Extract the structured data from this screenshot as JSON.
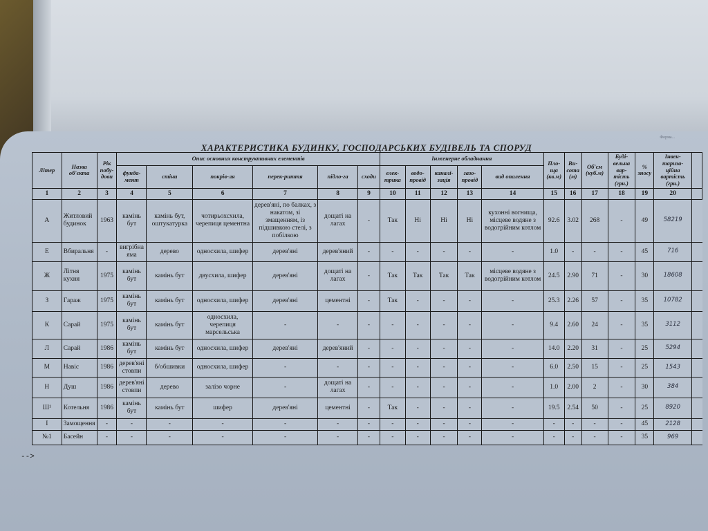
{
  "title": "ХАРАКТЕРИСТИКА БУДИНКУ, ГОСПОДАРСЬКИХ БУДІВЕЛЬ ТА СПОРУД",
  "corner_note": "Форма...",
  "groups": {
    "construction": "Опис основних конструктивних елементів",
    "engineering": "Інженерне обладнання"
  },
  "headers": [
    "Літер",
    "Назва об'єкта",
    "Рік побу-дови",
    "фунда-мент",
    "стіни",
    "покрів-ля",
    "перек-риття",
    "підло-га",
    "сходи",
    "елек-трика",
    "водо-провід",
    "каналі-зація",
    "газо-провід",
    "вид опалення",
    "Пло-ща (кв.м)",
    "Ви-сота (м)",
    "Об'єм (куб.м)",
    "Буді-вельна вар-тість (грн.)",
    "% зносу",
    "Інвен-тариза-ційна вартість (грн.)"
  ],
  "column_numbers": [
    "1",
    "2",
    "3",
    "4",
    "5",
    "6",
    "7",
    "8",
    "9",
    "10",
    "11",
    "12",
    "13",
    "14",
    "15",
    "16",
    "17",
    "18",
    "19",
    "20"
  ],
  "rows": [
    [
      "А",
      "Житловий будинок",
      "1963",
      "камінь бут",
      "камінь бут, оштукатурка",
      "чотирьохсхила, черепиця цементна",
      "дерев'яні, по балках, з накатом, зі змащенням, із підшивкою стелі, з побілкою",
      "дощаті на лагах",
      "-",
      "Так",
      "Ні",
      "Ні",
      "Ні",
      "кухонні вогнища, місцеве водяне з водогрійним котлом",
      "92.6",
      "3.02",
      "268",
      "-",
      "49",
      "58219"
    ],
    [
      "Е",
      "Вбиральня",
      "-",
      "вигрібна яма",
      "дерево",
      "односхила, шифер",
      "дерев'яні",
      "дерев'яний",
      "-",
      "-",
      "-",
      "-",
      "-",
      "-",
      "1.0",
      "-",
      "-",
      "-",
      "45",
      "716"
    ],
    [
      "Ж",
      "Літня кухня",
      "1975",
      "камінь бут",
      "камінь бут",
      "двусхила, шифер",
      "дерев'яні",
      "дощаті на лагах",
      "-",
      "Так",
      "Так",
      "Так",
      "Так",
      "місцеве водяне з водогрійним котлом",
      "24.5",
      "2.90",
      "71",
      "-",
      "30",
      "18608"
    ],
    [
      "З",
      "Гараж",
      "1975",
      "камінь бут",
      "камінь бут",
      "односхила, шифер",
      "дерев'яні",
      "цементні",
      "-",
      "Так",
      "-",
      "-",
      "-",
      "-",
      "25.3",
      "2.26",
      "57",
      "-",
      "35",
      "10782"
    ],
    [
      "К",
      "Сарай",
      "1975",
      "камінь бут",
      "камінь бут",
      "односхила, черепиця марсельська",
      "-",
      "-",
      "-",
      "-",
      "-",
      "-",
      "-",
      "-",
      "9.4",
      "2.60",
      "24",
      "-",
      "35",
      "3112"
    ],
    [
      "Л",
      "Сарай",
      "1986",
      "камінь бут",
      "камінь бут",
      "односхила, шифер",
      "дерев'яні",
      "дерев'яний",
      "-",
      "-",
      "-",
      "-",
      "-",
      "-",
      "14.0",
      "2.20",
      "31",
      "-",
      "25",
      "5294"
    ],
    [
      "М",
      "Навіс",
      "1986",
      "дерев'яні стовпи",
      "б/обшивки",
      "односхила, шифер",
      "-",
      "-",
      "-",
      "-",
      "-",
      "-",
      "-",
      "-",
      "6.0",
      "2.50",
      "15",
      "-",
      "25",
      "1543"
    ],
    [
      "Н",
      "Душ",
      "1986",
      "дерев'яні стовпи",
      "дерево",
      "залізо чорне",
      "-",
      "дощаті на лагах",
      "-",
      "-",
      "-",
      "-",
      "-",
      "-",
      "1.0",
      "2.00",
      "2",
      "-",
      "30",
      "384"
    ],
    [
      "Ш¹",
      "Котельня",
      "1986",
      "камінь бут",
      "камінь бут",
      "шифер",
      "дерев'яні",
      "цементні",
      "-",
      "Так",
      "-",
      "-",
      "-",
      "-",
      "19.5",
      "2.54",
      "50",
      "-",
      "25",
      "8920"
    ],
    [
      "І",
      "Замощення",
      "-",
      "-",
      "-",
      "-",
      "-",
      "-",
      "-",
      "-",
      "-",
      "-",
      "-",
      "-",
      "-",
      "-",
      "-",
      "-",
      "45",
      "2128"
    ],
    [
      "№1",
      "Басейн",
      "-",
      "-",
      "-",
      "-",
      "-",
      "-",
      "-",
      "-",
      "-",
      "-",
      "-",
      "-",
      "-",
      "-",
      "-",
      "-",
      "35",
      "969"
    ]
  ],
  "trailing_marker": "-->"
}
